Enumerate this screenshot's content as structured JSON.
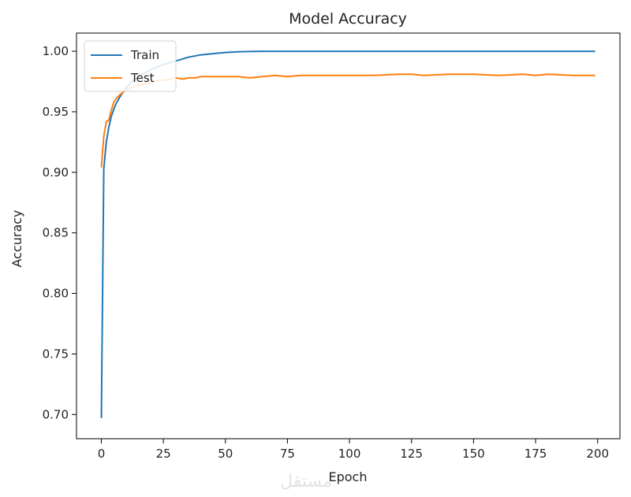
{
  "watermark": "مستقل",
  "chart_data": {
    "type": "line",
    "title": "Model Accuracy",
    "xlabel": "Epoch",
    "ylabel": "Accuracy",
    "xlim": [
      -10,
      209
    ],
    "ylim": [
      0.68,
      1.015
    ],
    "xticks": [
      0,
      25,
      50,
      75,
      100,
      125,
      150,
      175,
      200
    ],
    "xtick_labels": [
      "0",
      "25",
      "50",
      "75",
      "100",
      "125",
      "150",
      "175",
      "200"
    ],
    "yticks": [
      0.7,
      0.75,
      0.8,
      0.85,
      0.9,
      0.95,
      1.0
    ],
    "ytick_labels": [
      "0.70",
      "0.75",
      "0.80",
      "0.85",
      "0.90",
      "0.95",
      "1.00"
    ],
    "grid": false,
    "legend_position": "top-left",
    "series": [
      {
        "name": "Train",
        "color": "#1f77b4",
        "x": [
          0,
          1,
          2,
          3,
          4,
          5,
          6,
          8,
          10,
          12,
          15,
          20,
          25,
          30,
          35,
          40,
          45,
          50,
          55,
          60,
          65,
          70,
          80,
          100,
          125,
          150,
          175,
          199
        ],
        "y": [
          0.697,
          0.903,
          0.925,
          0.937,
          0.946,
          0.952,
          0.957,
          0.964,
          0.97,
          0.974,
          0.979,
          0.985,
          0.989,
          0.992,
          0.995,
          0.997,
          0.998,
          0.999,
          0.9995,
          0.9998,
          1.0,
          1.0,
          1.0,
          1.0,
          1.0,
          1.0,
          1.0,
          1.0
        ]
      },
      {
        "name": "Test",
        "color": "#ff7f0e",
        "x": [
          0,
          1,
          2,
          3,
          4,
          5,
          6,
          7,
          8,
          10,
          12,
          15,
          18,
          20,
          22,
          25,
          28,
          30,
          33,
          35,
          38,
          40,
          45,
          50,
          55,
          60,
          65,
          70,
          75,
          80,
          85,
          90,
          100,
          110,
          120,
          125,
          130,
          140,
          150,
          160,
          170,
          175,
          180,
          190,
          199
        ],
        "y": [
          0.904,
          0.93,
          0.942,
          0.943,
          0.951,
          0.958,
          0.961,
          0.963,
          0.965,
          0.968,
          0.97,
          0.972,
          0.973,
          0.974,
          0.976,
          0.976,
          0.977,
          0.978,
          0.977,
          0.978,
          0.978,
          0.979,
          0.979,
          0.979,
          0.979,
          0.978,
          0.979,
          0.98,
          0.979,
          0.98,
          0.98,
          0.98,
          0.98,
          0.98,
          0.981,
          0.981,
          0.98,
          0.981,
          0.981,
          0.98,
          0.981,
          0.98,
          0.981,
          0.98,
          0.98
        ]
      }
    ]
  }
}
